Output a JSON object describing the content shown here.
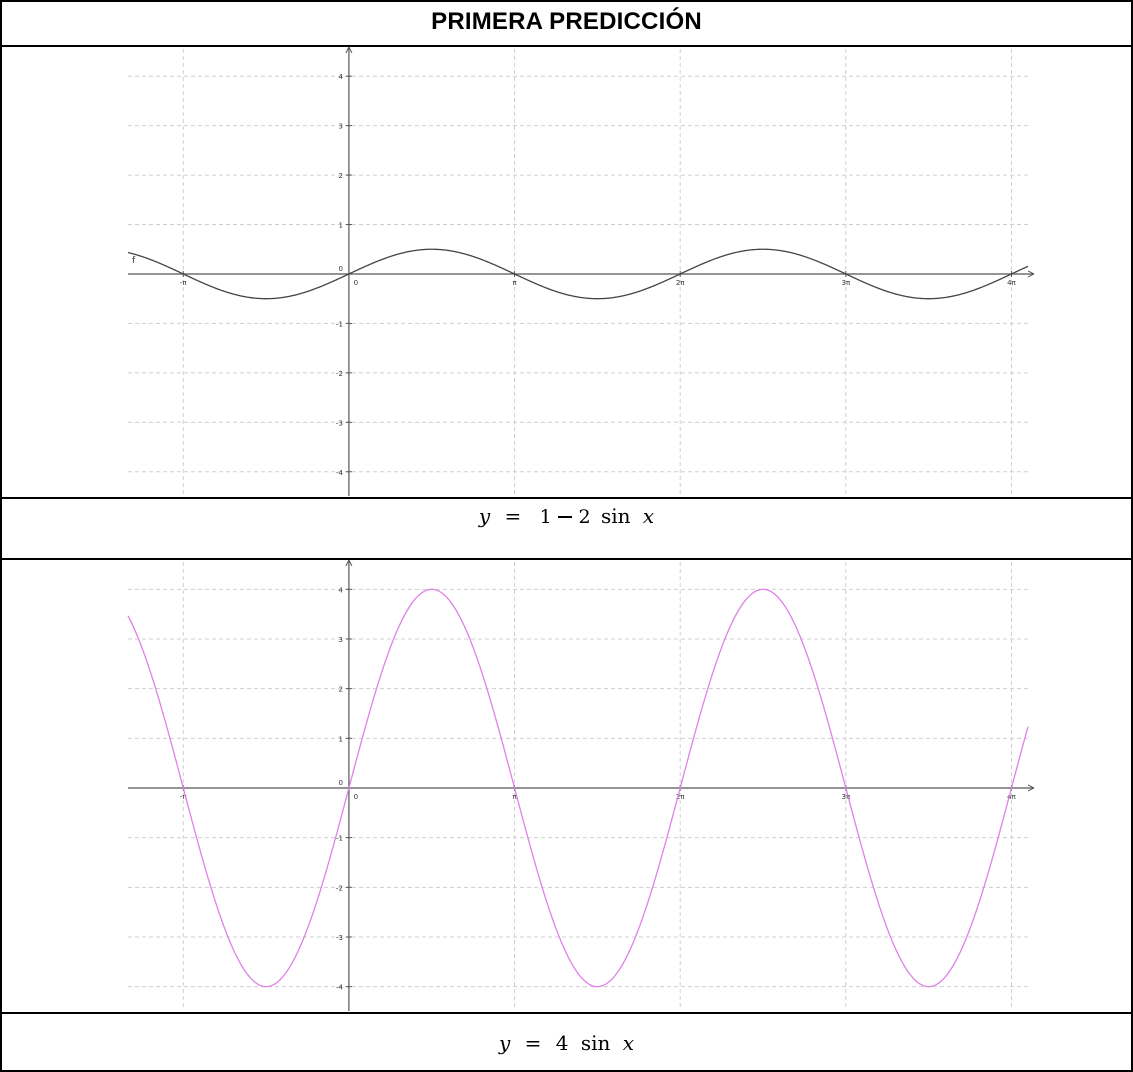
{
  "title": "PRIMERA PREDICCIÓN",
  "chart_data": [
    {
      "type": "line",
      "function": "y = 0.5 sin x",
      "amplitude": 0.5,
      "color": "#444444",
      "curve_label": "f",
      "xlim": [
        -4.19,
        12.88
      ],
      "ylim": [
        -4.45,
        4.55
      ],
      "x_ticks": [
        {
          "value": -3.14159,
          "label": "-π"
        },
        {
          "value": 0,
          "label": "0"
        },
        {
          "value": 3.14159,
          "label": "π"
        },
        {
          "value": 6.28319,
          "label": "2π"
        },
        {
          "value": 9.42478,
          "label": "3π"
        },
        {
          "value": 12.56637,
          "label": "4π"
        }
      ],
      "y_ticks": [
        {
          "value": 4,
          "label": "4"
        },
        {
          "value": 3,
          "label": "3"
        },
        {
          "value": 2,
          "label": "2"
        },
        {
          "value": 1,
          "label": "1"
        },
        {
          "value": -1,
          "label": "-1"
        },
        {
          "value": -2,
          "label": "-2"
        },
        {
          "value": -3,
          "label": "-3"
        },
        {
          "value": -4,
          "label": "-4"
        }
      ],
      "grid": true
    },
    {
      "type": "line",
      "function": "y = 4 sin x",
      "amplitude": 4,
      "color": "#e080e8",
      "curve_label": "",
      "xlim": [
        -4.19,
        12.88
      ],
      "ylim": [
        -4.45,
        4.55
      ],
      "x_ticks": [
        {
          "value": -3.14159,
          "label": "-π"
        },
        {
          "value": 0,
          "label": "0"
        },
        {
          "value": 3.14159,
          "label": "π"
        },
        {
          "value": 6.28319,
          "label": "2π"
        },
        {
          "value": 9.42478,
          "label": "3π"
        },
        {
          "value": 12.56637,
          "label": "4π"
        }
      ],
      "y_ticks": [
        {
          "value": 4,
          "label": "4"
        },
        {
          "value": 3,
          "label": "3"
        },
        {
          "value": 2,
          "label": "2"
        },
        {
          "value": 1,
          "label": "1"
        },
        {
          "value": -1,
          "label": "-1"
        },
        {
          "value": -2,
          "label": "-2"
        },
        {
          "value": -3,
          "label": "-3"
        },
        {
          "value": -4,
          "label": "-4"
        }
      ],
      "grid": true
    }
  ],
  "captions": {
    "first": {
      "y": "y",
      "eq": "=",
      "num": "1",
      "den": "2",
      "fn": "sin",
      "x": "x"
    },
    "second": {
      "y": "y",
      "eq": "=",
      "coef": "4",
      "fn": "sin",
      "x": "x"
    }
  },
  "colors": {
    "grid": "#cfcfcf",
    "axis": "#555555",
    "border": "#000000"
  }
}
